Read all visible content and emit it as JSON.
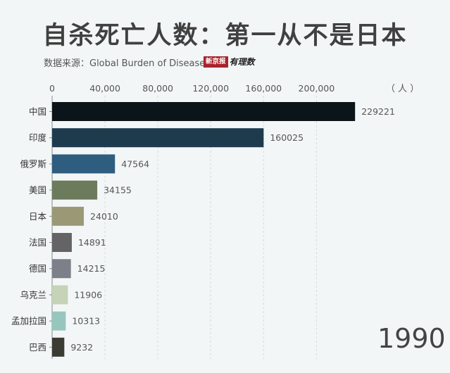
{
  "title": "自杀死亡人数：第一从不是日本",
  "source": "数据来源：Global Burden of Disease",
  "logo": {
    "box_text": "新京报",
    "script_text": "有理数"
  },
  "unit": "（ 人 ）",
  "year": "1990",
  "chart_data": {
    "type": "bar",
    "orientation": "horizontal",
    "xlim": [
      0,
      240000
    ],
    "ticks": [
      0,
      40000,
      80000,
      120000,
      160000,
      200000
    ],
    "tick_labels": [
      "0",
      "40,000",
      "80,000",
      "120,000",
      "160,000",
      "200,000"
    ],
    "grid": true,
    "categories": [
      "中国",
      "印度",
      "俄罗斯",
      "美国",
      "日本",
      "法国",
      "德国",
      "乌克兰",
      "孟加拉国",
      "巴西"
    ],
    "values": [
      229221,
      160025,
      47564,
      34155,
      24010,
      14891,
      14215,
      11906,
      10313,
      9232
    ],
    "value_labels": [
      "229221",
      "160025",
      "47564",
      "34155",
      "24010",
      "14891",
      "14215",
      "11906",
      "10313",
      "9232"
    ],
    "colors": [
      "#0b1419",
      "#1e3b4e",
      "#2e5d80",
      "#6b7b5c",
      "#9b9975",
      "#646464",
      "#7c8089",
      "#c5d3b6",
      "#97c6bf",
      "#3b3b34"
    ]
  }
}
